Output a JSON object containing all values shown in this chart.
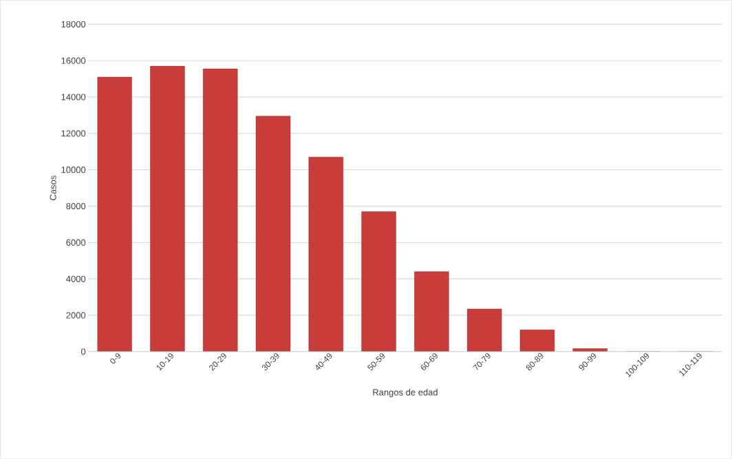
{
  "chart_data": {
    "type": "bar",
    "xlabel": "Rangos de edad",
    "ylabel": "Casos",
    "categories": [
      "0-9",
      "10-19",
      "20-29",
      "30-39",
      "40-49",
      "50-59",
      "60-69",
      "70-79",
      "80-89",
      "90-99",
      "100-109",
      "110-119"
    ],
    "values": [
      15100,
      15700,
      15550,
      12950,
      10700,
      7700,
      4400,
      2350,
      1200,
      170,
      0,
      0
    ],
    "color": "#c83c3a",
    "ylim": [
      0,
      18000
    ],
    "yticks": [
      0,
      2000,
      4000,
      6000,
      8000,
      10000,
      12000,
      14000,
      16000,
      18000
    ],
    "grid": "y"
  }
}
